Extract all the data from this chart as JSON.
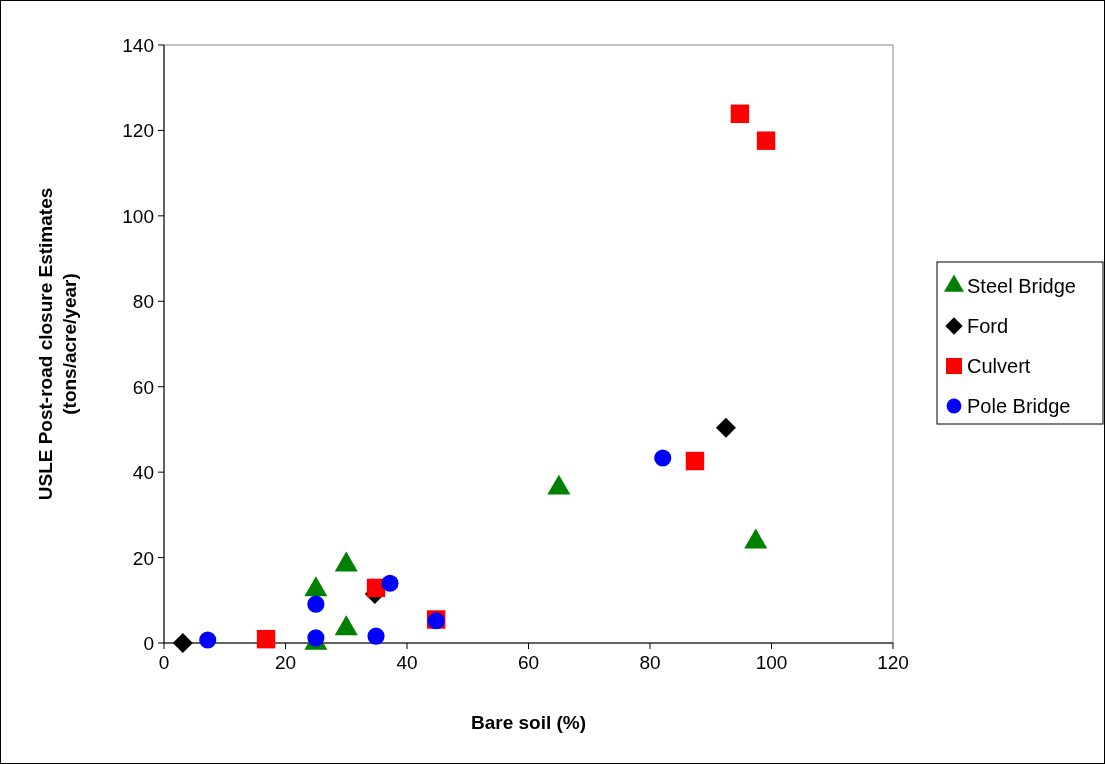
{
  "chart_data": {
    "type": "scatter",
    "xlabel": "Bare soil (%)",
    "ylabel": "USLE Post-road closure Estimates\n(tons/acre/year)",
    "xlim": [
      0,
      120
    ],
    "xticks": [
      0,
      20,
      40,
      60,
      80,
      100,
      120
    ],
    "ylim": [
      0,
      140
    ],
    "yticks": [
      0,
      20,
      40,
      60,
      80,
      100,
      120,
      140
    ],
    "grid": false,
    "legend": "right",
    "series": [
      {
        "name": "Steel Bridge",
        "color": "#008000",
        "marker": "triangle",
        "x": [
          25,
          25,
          30,
          30,
          65,
          97.4
        ],
        "values": [
          12.5,
          0,
          18.3,
          3.4,
          36.3,
          23.7
        ]
      },
      {
        "name": "Ford",
        "color": "#000000",
        "marker": "diamond",
        "x": [
          3.1,
          34.7,
          92.5
        ],
        "values": [
          0,
          11.5,
          50.4
        ]
      },
      {
        "name": "Culvert",
        "color": "#ff0000",
        "marker": "square",
        "x": [
          16.8,
          34.9,
          44.8,
          87.4,
          94.8,
          99.1
        ],
        "values": [
          0.9,
          12.9,
          5.5,
          42.6,
          123.9,
          117.6
        ]
      },
      {
        "name": "Pole Bridge",
        "color": "#0000ff",
        "marker": "circle",
        "x": [
          7.2,
          25,
          25,
          34.9,
          37.2,
          44.8,
          82.1
        ],
        "values": [
          0.7,
          9.1,
          1.2,
          1.6,
          14,
          5.2,
          43.3
        ]
      }
    ]
  }
}
